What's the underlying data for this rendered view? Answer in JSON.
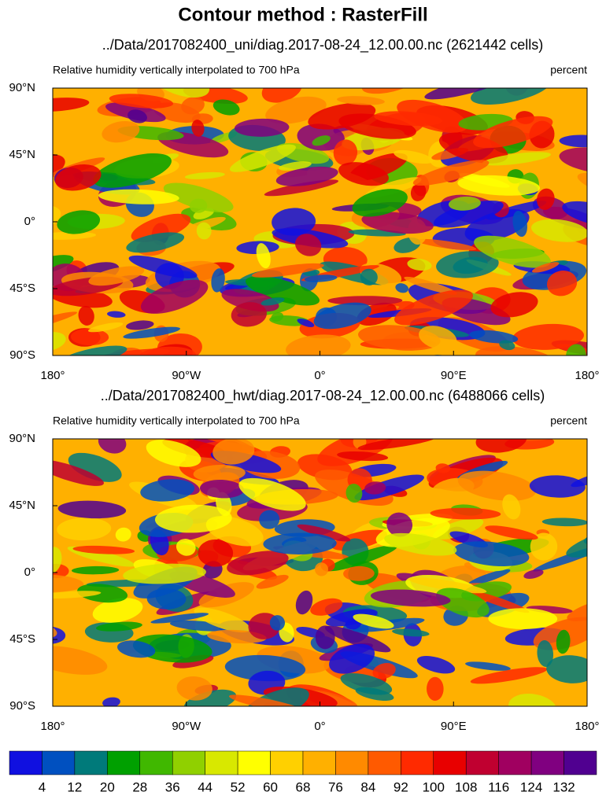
{
  "header": {
    "title": "Contour method : RasterFill"
  },
  "panels": [
    {
      "subtitle": "../Data/2017082400_uni/diag.2017-08-24_12.00.00.nc (2621442 cells)",
      "left_label": "Relative humidity vertically interpolated to 700 hPa",
      "right_label": "percent",
      "lat_ticks": [
        "90°N",
        "45°N",
        "0°",
        "45°S",
        "90°S"
      ],
      "lon_ticks": [
        "180°",
        "90°W",
        "0°",
        "90°E",
        "180°"
      ]
    },
    {
      "subtitle": "../Data/2017082400_hwt/diag.2017-08-24_12.00.00.nc (6488066 cells)",
      "left_label": "Relative humidity vertically interpolated to 700 hPa",
      "right_label": "percent",
      "lat_ticks": [
        "90°N",
        "45°N",
        "0°",
        "45°S",
        "90°S"
      ],
      "lon_ticks": [
        "180°",
        "90°W",
        "0°",
        "90°E",
        "180°"
      ]
    }
  ],
  "colorbar": {
    "labels": [
      "4",
      "12",
      "20",
      "28",
      "36",
      "44",
      "52",
      "60",
      "68",
      "76",
      "84",
      "92",
      "100",
      "108",
      "116",
      "124",
      "132"
    ]
  }
}
